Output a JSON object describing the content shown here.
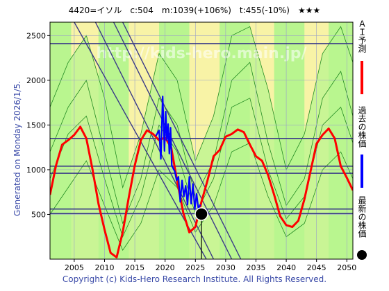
{
  "header": {
    "code": "4420=イソル",
    "c": "c:504",
    "m": "m:1039(+106%)",
    "t": "t:455(-10%)",
    "stars": "★★★"
  },
  "side_label": "Generated on Monday 2026/1/5.",
  "footer": "Copyright (c) Kids-Hero Research Institute. All Rights Reserved.",
  "watermark": "http://kids-hero.main.jp/",
  "legend": [
    {
      "label": "ＡＩ予測",
      "color": "#ff0000"
    },
    {
      "label": "過去の株価",
      "color": "#0000ff"
    },
    {
      "label": "最新の株価",
      "color": "#000000"
    }
  ],
  "chart_data": {
    "type": "line",
    "xlim": [
      2001,
      2051
    ],
    "ylim": [
      0,
      2650
    ],
    "xticks": [
      2005,
      2010,
      2015,
      2020,
      2025,
      2030,
      2035,
      2040,
      2045,
      2050
    ],
    "yticks": [
      500,
      1000,
      1500,
      2000,
      2500
    ],
    "colors": {
      "ai": "#ff0000",
      "past": "#0000ff",
      "latest": "#000000",
      "level": "#3a3a88",
      "trend": "#3a3a88",
      "band": "#228b22",
      "bg_green": "#b9f58f",
      "bg_yellow": "#f8f3a6"
    },
    "horizontal_levels": [
      2410,
      1350,
      1040,
      960,
      560,
      510
    ],
    "trend_lines": [
      {
        "x": [
          2011.5,
          2031.0
        ],
        "y": [
          2650,
          0
        ]
      },
      {
        "x": [
          2013.0,
          2032.5
        ],
        "y": [
          2650,
          0
        ]
      },
      {
        "x": [
          2008.5,
          2028.0
        ],
        "y": [
          2650,
          0
        ]
      },
      {
        "x": [
          2005.0,
          2026.8
        ],
        "y": [
          2650,
          0
        ]
      }
    ],
    "series": [
      {
        "name": "ＡＩ予測",
        "x": [
          2001.0,
          2002.0,
          2003.0,
          2004.0,
          2005.0,
          2006.0,
          2007.0,
          2008.0,
          2009.0,
          2010.0,
          2011.0,
          2012.0,
          2013.0,
          2014.0,
          2015.0,
          2016.0,
          2017.0,
          2018.0,
          2019.0,
          2020.0,
          2021.0,
          2022.0,
          2023.0,
          2024.0,
          2025.0,
          2026.0,
          2027.0,
          2028.0,
          2029.0,
          2030.0,
          2031.0,
          2032.0,
          2033.0,
          2034.0,
          2035.0,
          2036.0,
          2037.0,
          2038.0,
          2039.0,
          2040.0,
          2041.0,
          2042.0,
          2043.0,
          2044.0,
          2045.0,
          2046.0,
          2047.0,
          2048.0,
          2049.0,
          2050.0,
          2051.0
        ],
        "values": [
          720,
          1050,
          1280,
          1330,
          1390,
          1480,
          1350,
          1010,
          620,
          330,
          70,
          20,
          300,
          690,
          1050,
          1330,
          1440,
          1400,
          1330,
          1360,
          1250,
          870,
          520,
          300,
          360,
          640,
          880,
          1150,
          1220,
          1370,
          1400,
          1450,
          1420,
          1280,
          1150,
          1100,
          940,
          720,
          480,
          380,
          360,
          430,
          670,
          980,
          1290,
          1390,
          1460,
          1350,
          1040,
          910,
          770
        ]
      },
      {
        "name": "過去の株価",
        "x": [
          2018.5,
          2019.0,
          2019.3,
          2019.6,
          2019.9,
          2020.1,
          2020.3,
          2020.5,
          2020.7,
          2020.9,
          2021.1,
          2021.3,
          2021.6,
          2021.9,
          2022.2,
          2022.5,
          2022.8,
          2023.1,
          2023.4,
          2023.7,
          2024.0,
          2024.3,
          2024.6,
          2024.9,
          2025.2,
          2025.5,
          2025.8
        ],
        "values": [
          1380,
          1440,
          1120,
          1820,
          1210,
          1650,
          1330,
          1510,
          1180,
          1470,
          1050,
          1020,
          980,
          880,
          920,
          640,
          880,
          700,
          820,
          610,
          920,
          620,
          840,
          560,
          730,
          560,
          610
        ]
      }
    ],
    "latest": {
      "x": 2026.0,
      "y": 504
    },
    "band_lines": [
      {
        "x": [
          2001.0,
          2004.0,
          2007.0,
          2010.0,
          2013.0,
          2016.0,
          2019.0,
          2022.0,
          2025.0,
          2028.0,
          2031.0,
          2034.0,
          2037.0,
          2040.0,
          2043.0,
          2046.0,
          2049.0,
          2051.0
        ],
        "y": [
          1200,
          1700,
          2000,
          1200,
          400,
          900,
          1800,
          1500,
          700,
          1100,
          2000,
          2200,
          1300,
          600,
          900,
          1800,
          2100,
          1600
        ]
      },
      {
        "x": [
          2001.0,
          2004.0,
          2007.0,
          2010.0,
          2013.0,
          2016.0,
          2019.0,
          2022.0,
          2025.0,
          2028.0,
          2031.0,
          2034.0,
          2037.0,
          2040.0,
          2043.0,
          2046.0,
          2049.0,
          2051.0
        ],
        "y": [
          900,
          1400,
          1600,
          900,
          250,
          700,
          1500,
          1200,
          500,
          900,
          1700,
          1800,
          1000,
          450,
          700,
          1500,
          1700,
          1300
        ]
      },
      {
        "x": [
          2001.0,
          2004.0,
          2007.0,
          2010.0,
          2013.0,
          2016.0,
          2019.0,
          2022.0,
          2025.0,
          2028.0,
          2031.0,
          2034.0,
          2037.0,
          2040.0,
          2043.0,
          2046.0,
          2049.0,
          2051.0
        ],
        "y": [
          500,
          800,
          1100,
          600,
          100,
          400,
          1000,
          800,
          300,
          600,
          1200,
          1300,
          700,
          250,
          400,
          1000,
          1200,
          900
        ]
      },
      {
        "x": [
          2001.0,
          2004.0,
          2007.0,
          2010.0,
          2013.0,
          2016.0,
          2019.0,
          2022.0,
          2025.0,
          2028.0,
          2031.0,
          2034.0,
          2037.0,
          2040.0,
          2043.0,
          2046.0,
          2049.0,
          2051.0
        ],
        "y": [
          1700,
          2200,
          2500,
          1800,
          800,
          1400,
          2300,
          2000,
          1100,
          1600,
          2500,
          2600,
          1900,
          1000,
          1400,
          2300,
          2600,
          2200
        ]
      }
    ]
  }
}
